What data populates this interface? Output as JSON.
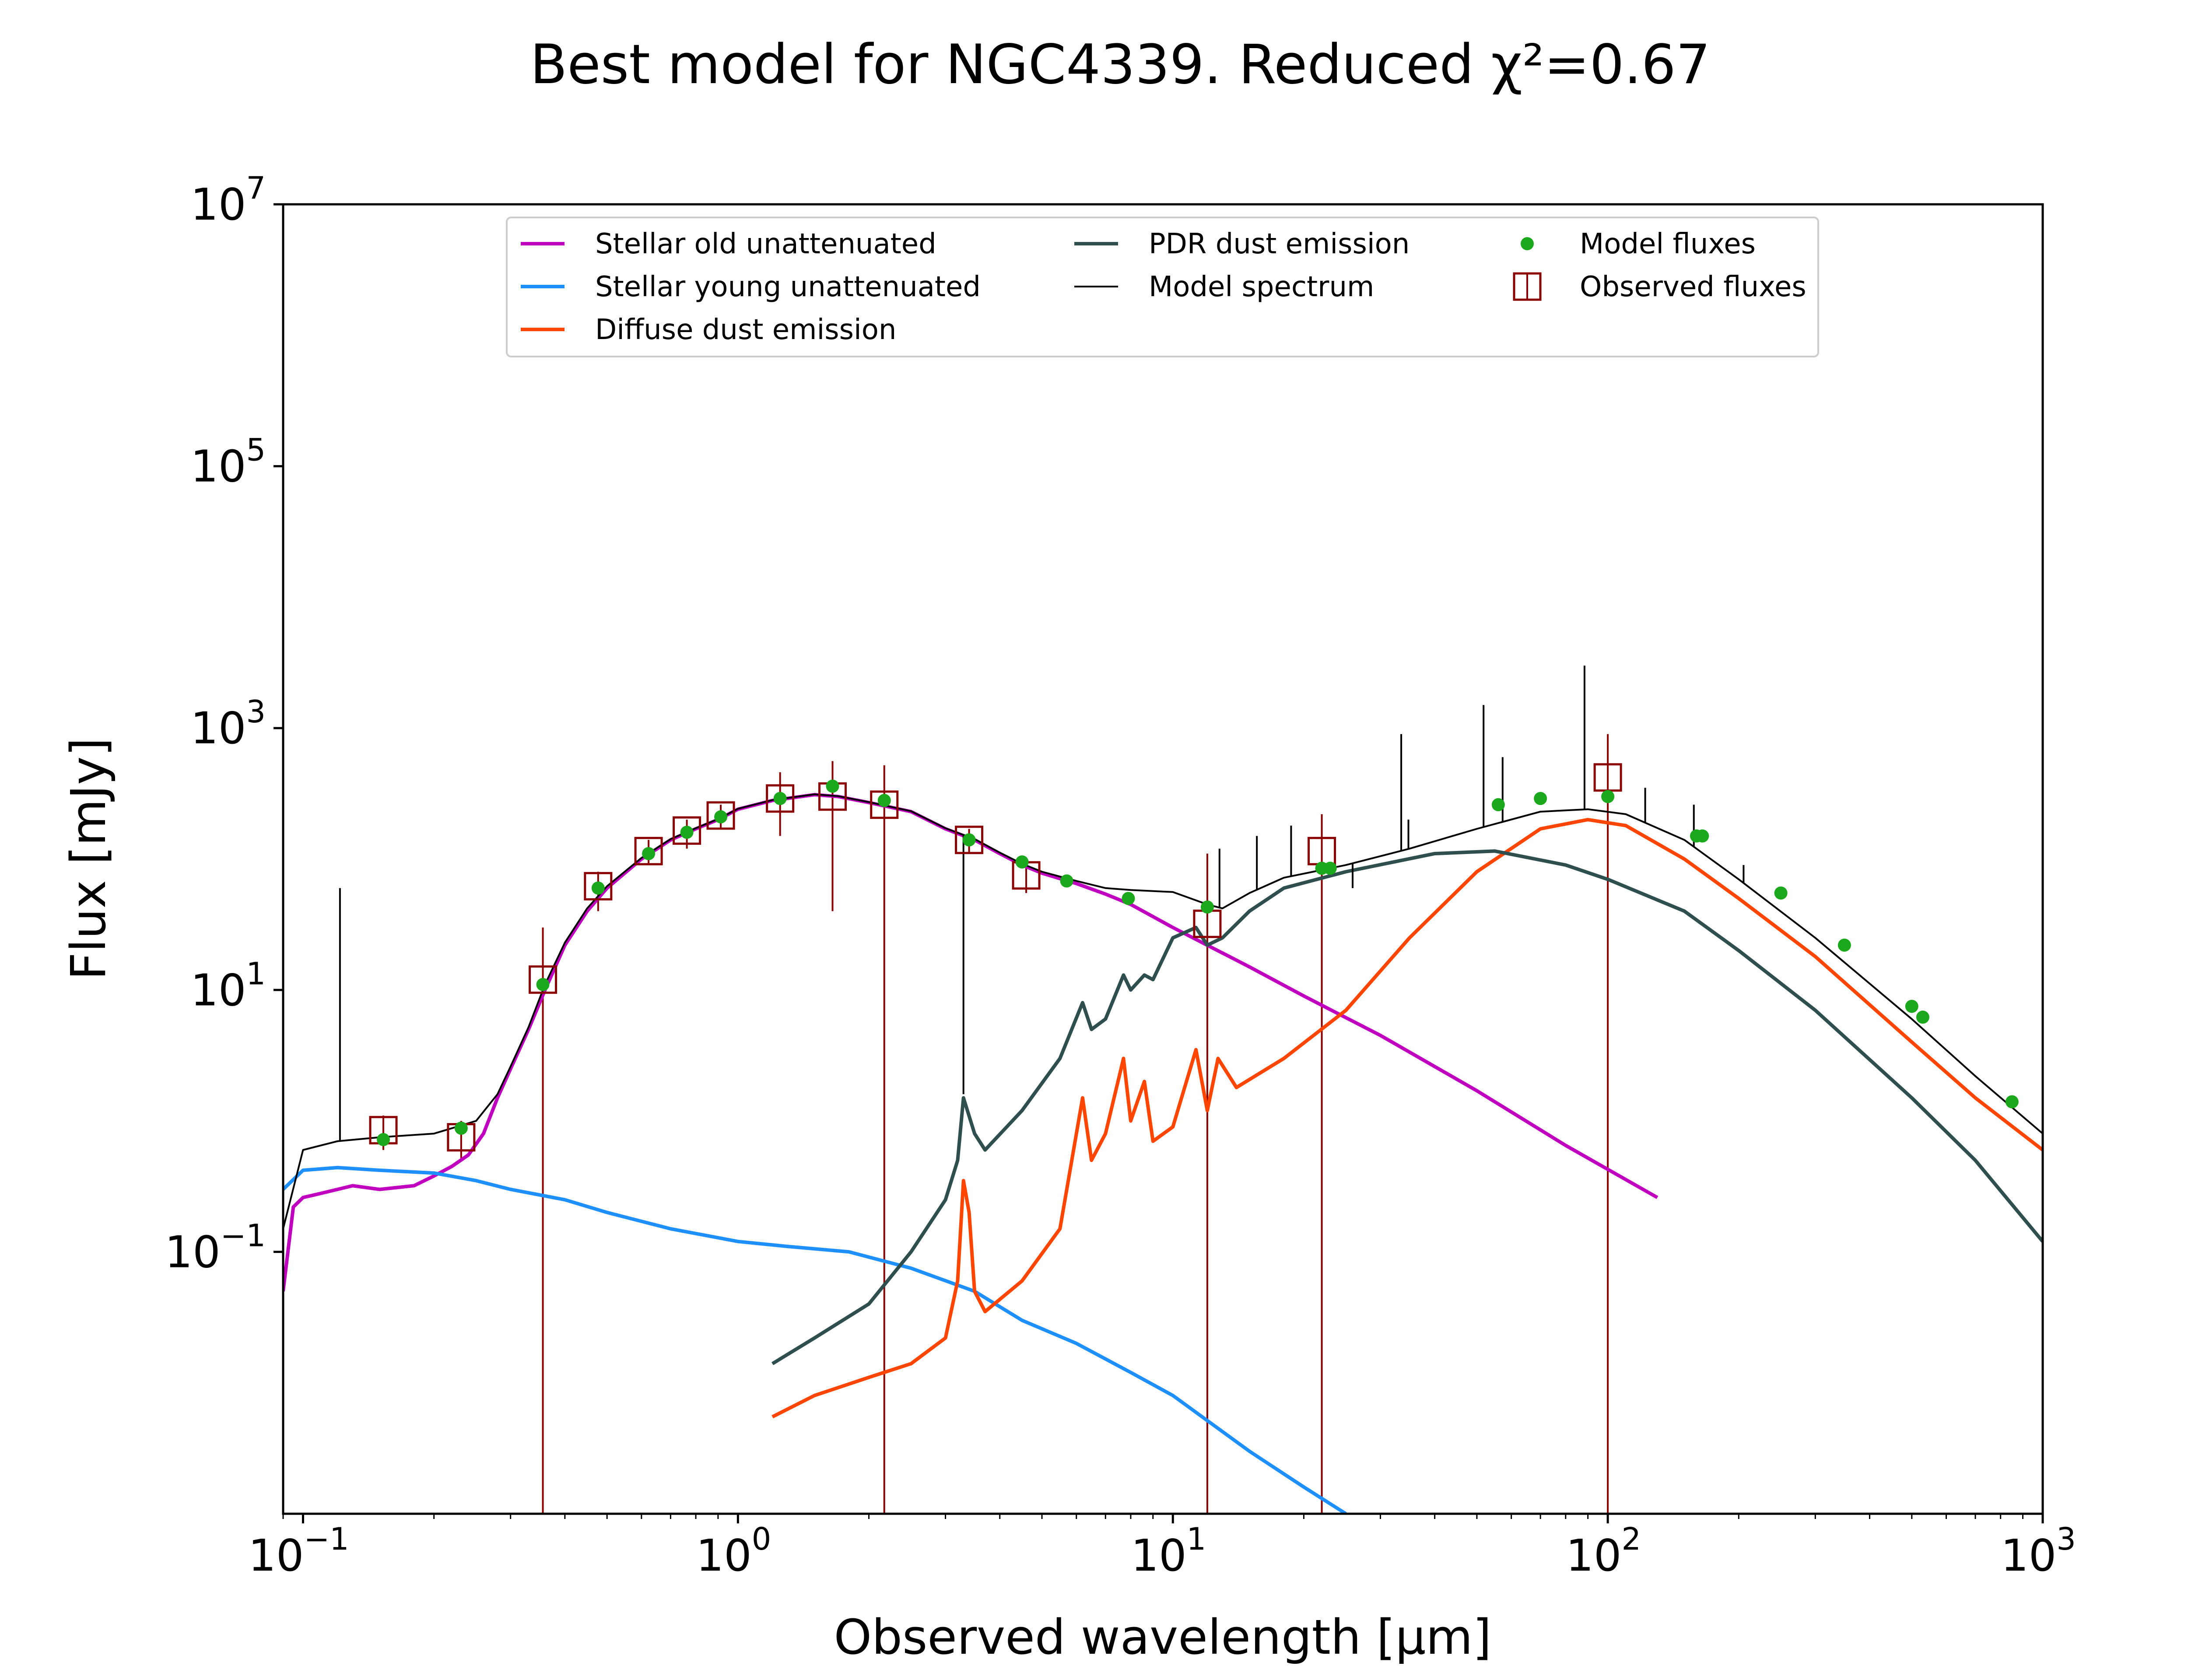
{
  "chart_data": {
    "type": "line",
    "title": "Best model for NGC4339. Reduced χ²=0.67",
    "xlabel": "Observed wavelength [μm]",
    "ylabel": "Flux [mJy]",
    "xscale": "log",
    "yscale": "log",
    "xlim": [
      0.09,
      1000
    ],
    "ylim": [
      0.001,
      10000000
    ],
    "grid": false,
    "legend_position": "top-center",
    "x_ticks": [
      {
        "value": 0.1,
        "base": "10",
        "exp": "−1"
      },
      {
        "value": 1,
        "base": "10",
        "exp": "0"
      },
      {
        "value": 10,
        "base": "10",
        "exp": "1"
      },
      {
        "value": 100,
        "base": "10",
        "exp": "2"
      },
      {
        "value": 1000,
        "base": "10",
        "exp": "3"
      }
    ],
    "y_ticks": [
      {
        "value": 0.1,
        "base": "10",
        "exp": "−1"
      },
      {
        "value": 10,
        "base": "10",
        "exp": "1"
      },
      {
        "value": 1000,
        "base": "10",
        "exp": "3"
      },
      {
        "value": 100000,
        "base": "10",
        "exp": "5"
      },
      {
        "value": 10000000,
        "base": "10",
        "exp": "7"
      }
    ],
    "series": [
      {
        "name": "Stellar old unattenuated",
        "color": "#bf00bf",
        "points": [
          [
            0.09,
            0.05
          ],
          [
            0.095,
            0.22
          ],
          [
            0.1,
            0.26
          ],
          [
            0.11,
            0.28
          ],
          [
            0.12,
            0.3
          ],
          [
            0.13,
            0.32
          ],
          [
            0.15,
            0.3
          ],
          [
            0.18,
            0.32
          ],
          [
            0.2,
            0.38
          ],
          [
            0.22,
            0.45
          ],
          [
            0.24,
            0.55
          ],
          [
            0.26,
            0.8
          ],
          [
            0.28,
            1.5
          ],
          [
            0.3,
            2.5
          ],
          [
            0.33,
            5
          ],
          [
            0.36,
            10
          ],
          [
            0.4,
            22
          ],
          [
            0.45,
            40
          ],
          [
            0.5,
            60
          ],
          [
            0.6,
            100
          ],
          [
            0.7,
            140
          ],
          [
            0.8,
            170
          ],
          [
            0.9,
            200
          ],
          [
            1.0,
            240
          ],
          [
            1.2,
            280
          ],
          [
            1.5,
            310
          ],
          [
            1.7,
            300
          ],
          [
            2.0,
            270
          ],
          [
            2.5,
            230
          ],
          [
            3.0,
            170
          ],
          [
            3.5,
            140
          ],
          [
            4.0,
            110
          ],
          [
            4.5,
            90
          ],
          [
            5,
            78
          ],
          [
            6,
            65
          ],
          [
            7,
            54
          ],
          [
            8,
            45
          ],
          [
            10,
            30
          ],
          [
            15,
            15
          ],
          [
            20,
            9
          ],
          [
            30,
            4.5
          ],
          [
            50,
            1.7
          ],
          [
            80,
            0.65
          ],
          [
            130,
            0.26
          ]
        ]
      },
      {
        "name": "Stellar young unattenuated",
        "color": "#1e8fff",
        "points": [
          [
            0.09,
            0.3
          ],
          [
            0.1,
            0.42
          ],
          [
            0.12,
            0.44
          ],
          [
            0.15,
            0.42
          ],
          [
            0.2,
            0.4
          ],
          [
            0.25,
            0.35
          ],
          [
            0.3,
            0.3
          ],
          [
            0.4,
            0.25
          ],
          [
            0.5,
            0.2
          ],
          [
            0.7,
            0.15
          ],
          [
            1.0,
            0.12
          ],
          [
            1.3,
            0.11
          ],
          [
            1.8,
            0.1
          ],
          [
            2.5,
            0.075
          ],
          [
            3.5,
            0.05
          ],
          [
            4.5,
            0.03
          ],
          [
            6,
            0.02
          ],
          [
            8,
            0.012
          ],
          [
            10,
            0.008
          ],
          [
            15,
            0.003
          ],
          [
            20,
            0.0016
          ],
          [
            25,
            0.001
          ]
        ]
      },
      {
        "name": "Diffuse dust emission",
        "color": "#ff4500",
        "points": [
          [
            1.2,
            0.0055
          ],
          [
            1.5,
            0.008
          ],
          [
            2,
            0.011
          ],
          [
            2.5,
            0.014
          ],
          [
            3.0,
            0.022
          ],
          [
            3.2,
            0.06
          ],
          [
            3.3,
            0.35
          ],
          [
            3.4,
            0.2
          ],
          [
            3.5,
            0.05
          ],
          [
            3.7,
            0.035
          ],
          [
            4.5,
            0.06
          ],
          [
            5.5,
            0.15
          ],
          [
            6.2,
            1.5
          ],
          [
            6.5,
            0.5
          ],
          [
            7.0,
            0.8
          ],
          [
            7.7,
            3
          ],
          [
            8.0,
            1.0
          ],
          [
            8.6,
            2
          ],
          [
            9.0,
            0.7
          ],
          [
            10,
            0.9
          ],
          [
            11.3,
            3.5
          ],
          [
            12,
            1.2
          ],
          [
            12.7,
            3
          ],
          [
            14,
            1.8
          ],
          [
            18,
            3
          ],
          [
            25,
            7
          ],
          [
            35,
            25
          ],
          [
            50,
            80
          ],
          [
            70,
            170
          ],
          [
            90,
            200
          ],
          [
            110,
            180
          ],
          [
            150,
            100
          ],
          [
            200,
            50
          ],
          [
            300,
            18
          ],
          [
            500,
            4
          ],
          [
            700,
            1.5
          ],
          [
            1000,
            0.6
          ]
        ]
      },
      {
        "name": "PDR dust emission",
        "color": "#2f4f4f",
        "points": [
          [
            1.2,
            0.014
          ],
          [
            1.5,
            0.022
          ],
          [
            2,
            0.04
          ],
          [
            2.5,
            0.1
          ],
          [
            3.0,
            0.25
          ],
          [
            3.2,
            0.5
          ],
          [
            3.3,
            1.5
          ],
          [
            3.5,
            0.8
          ],
          [
            3.7,
            0.6
          ],
          [
            4.5,
            1.2
          ],
          [
            5.5,
            3
          ],
          [
            6.2,
            8
          ],
          [
            6.5,
            5
          ],
          [
            7.0,
            6
          ],
          [
            7.7,
            13
          ],
          [
            8.0,
            10
          ],
          [
            8.6,
            13
          ],
          [
            9.0,
            12
          ],
          [
            10,
            25
          ],
          [
            11.3,
            30
          ],
          [
            12,
            22
          ],
          [
            13,
            25
          ],
          [
            15,
            40
          ],
          [
            18,
            60
          ],
          [
            25,
            80
          ],
          [
            40,
            110
          ],
          [
            55,
            115
          ],
          [
            80,
            90
          ],
          [
            100,
            70
          ],
          [
            150,
            40
          ],
          [
            200,
            20
          ],
          [
            300,
            7
          ],
          [
            500,
            1.5
          ],
          [
            700,
            0.5
          ],
          [
            1000,
            0.12
          ]
        ]
      },
      {
        "name": "Model spectrum",
        "color": "#000000",
        "points": [
          [
            0.09,
            0.15
          ],
          [
            0.1,
            0.6
          ],
          [
            0.12,
            0.7
          ],
          [
            0.15,
            0.75
          ],
          [
            0.2,
            0.8
          ],
          [
            0.25,
            1.0
          ],
          [
            0.28,
            1.6
          ],
          [
            0.3,
            2.6
          ],
          [
            0.33,
            5.2
          ],
          [
            0.36,
            11
          ],
          [
            0.4,
            23
          ],
          [
            0.45,
            42
          ],
          [
            0.5,
            62
          ],
          [
            0.6,
            102
          ],
          [
            0.7,
            142
          ],
          [
            0.8,
            172
          ],
          [
            0.9,
            202
          ],
          [
            1.0,
            242
          ],
          [
            1.2,
            282
          ],
          [
            1.5,
            312
          ],
          [
            1.7,
            302
          ],
          [
            2.0,
            272
          ],
          [
            2.5,
            232
          ],
          [
            3.0,
            172
          ],
          [
            3.5,
            142
          ],
          [
            4.0,
            112
          ],
          [
            4.5,
            92
          ],
          [
            5,
            80
          ],
          [
            6,
            68
          ],
          [
            7,
            60
          ],
          [
            8,
            58
          ],
          [
            10,
            56
          ],
          [
            12,
            45
          ],
          [
            13,
            42
          ],
          [
            15,
            55
          ],
          [
            18,
            72
          ],
          [
            25,
            90
          ],
          [
            35,
            120
          ],
          [
            50,
            170
          ],
          [
            70,
            230
          ],
          [
            90,
            240
          ],
          [
            110,
            220
          ],
          [
            150,
            140
          ],
          [
            200,
            70
          ],
          [
            300,
            25
          ],
          [
            500,
            6
          ],
          [
            700,
            2.2
          ],
          [
            1000,
            0.8
          ]
        ]
      }
    ],
    "model_spectrum_lines": [
      [
        0.1216,
        60
      ],
      [
        3.3,
        1.6
      ],
      [
        12.8,
        120
      ],
      [
        15.6,
        150
      ],
      [
        18.7,
        180
      ],
      [
        25.9,
        60
      ],
      [
        33.5,
        900
      ],
      [
        34.8,
        200
      ],
      [
        51.8,
        1500
      ],
      [
        57.3,
        600
      ],
      [
        88.4,
        3000
      ],
      [
        121.9,
        350
      ],
      [
        157.7,
        260
      ],
      [
        205.2,
        90
      ]
    ],
    "model_fluxes": {
      "name": "Model fluxes",
      "color": "#1ca81c",
      "points": [
        [
          0.153,
          0.72
        ],
        [
          0.231,
          0.88
        ],
        [
          0.356,
          11
        ],
        [
          0.477,
          60
        ],
        [
          0.623,
          110
        ],
        [
          0.763,
          160
        ],
        [
          0.913,
          210
        ],
        [
          1.25,
          290
        ],
        [
          1.65,
          360
        ],
        [
          2.17,
          280
        ],
        [
          3.4,
          140
        ],
        [
          4.5,
          95
        ],
        [
          5.7,
          68
        ],
        [
          7.9,
          50
        ],
        [
          12,
          43
        ],
        [
          22,
          85
        ],
        [
          23,
          85
        ],
        [
          56,
          260
        ],
        [
          70,
          290
        ],
        [
          100,
          300
        ],
        [
          160,
          150
        ],
        [
          165,
          150
        ],
        [
          250,
          55
        ],
        [
          350,
          22
        ],
        [
          500,
          7.5
        ],
        [
          530,
          6.2
        ],
        [
          850,
          1.4
        ]
      ]
    },
    "observed_fluxes": {
      "name": "Observed fluxes",
      "color": "#8b0000",
      "points": [
        {
          "x": 0.153,
          "y": 0.85,
          "ylo": 0.6,
          "yhi": 1.1
        },
        {
          "x": 0.231,
          "y": 0.75,
          "ylo": 0.5,
          "yhi": 1.0
        },
        {
          "x": 0.356,
          "y": 12,
          "ylo": 0.001,
          "yhi": 30
        },
        {
          "x": 0.477,
          "y": 62,
          "ylo": 40,
          "yhi": 80
        },
        {
          "x": 0.623,
          "y": 115,
          "ylo": 90,
          "yhi": 140
        },
        {
          "x": 0.763,
          "y": 165,
          "ylo": 120,
          "yhi": 200
        },
        {
          "x": 0.913,
          "y": 215,
          "ylo": 170,
          "yhi": 260
        },
        {
          "x": 1.25,
          "y": 290,
          "ylo": 150,
          "yhi": 460
        },
        {
          "x": 1.65,
          "y": 300,
          "ylo": 40,
          "yhi": 560
        },
        {
          "x": 2.17,
          "y": 260,
          "ylo": 0.001,
          "yhi": 520
        },
        {
          "x": 3.4,
          "y": 140,
          "ylo": 110,
          "yhi": 170
        },
        {
          "x": 4.6,
          "y": 75,
          "ylo": 55,
          "yhi": 95
        },
        {
          "x": 12,
          "y": 32,
          "ylo": 0.001,
          "yhi": 110
        },
        {
          "x": 22,
          "y": 115,
          "ylo": 0.001,
          "yhi": 220
        },
        {
          "x": 100,
          "y": 420,
          "ylo": 0.001,
          "yhi": 900
        }
      ]
    }
  }
}
